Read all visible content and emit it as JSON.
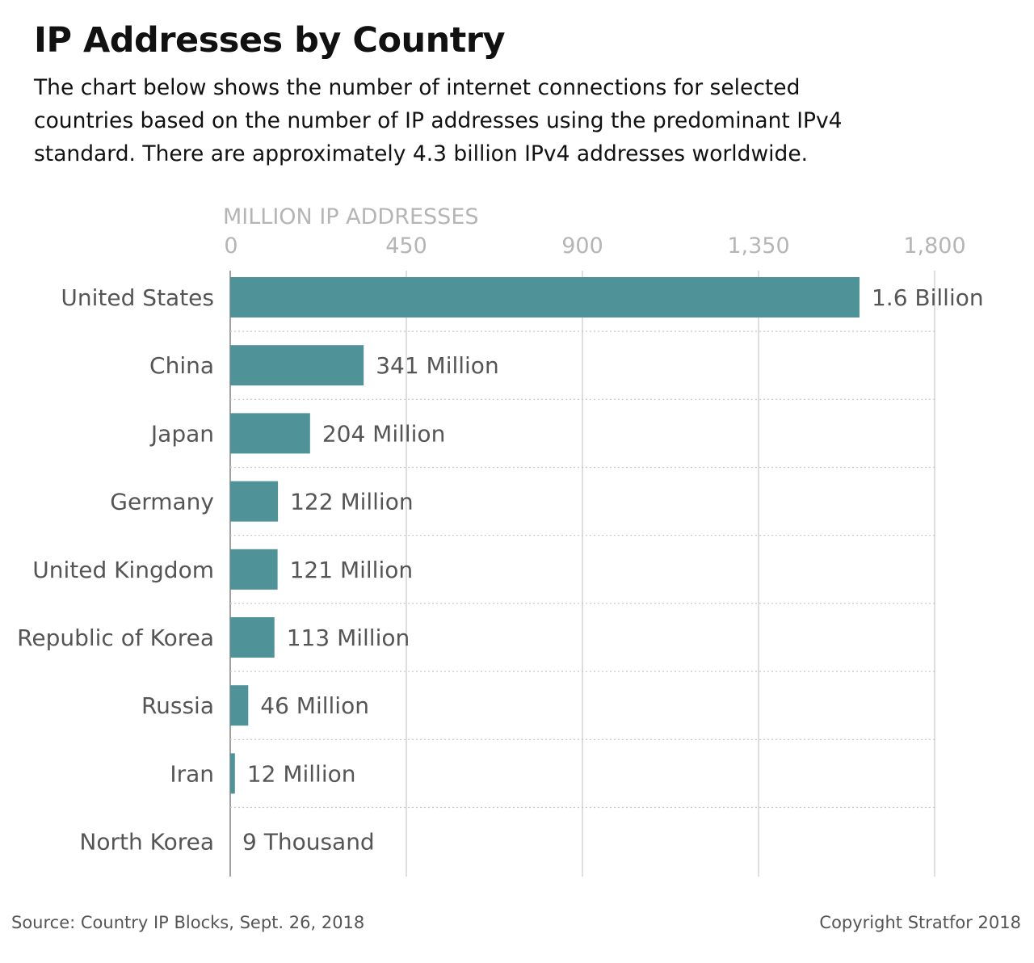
{
  "header": {
    "title": "IP Addresses by Country",
    "subtitle": "The chart below shows the number of internet connections for selected countries based on the number of IP addresses using the predominant IPv4 standard. There are approximately 4.3 billion IPv4 addresses worldwide."
  },
  "footer": {
    "source": "Source: Country IP Blocks, Sept. 26, 2018",
    "copyright": "Copyright Stratfor 2018"
  },
  "colors": {
    "bar": "#4f9399",
    "grid": "#c8c8c8",
    "axis_text": "#b5b5b5",
    "label_text": "#555555"
  },
  "chart_data": {
    "type": "bar",
    "orientation": "horizontal",
    "xlabel": "MILLION IP ADDRESSES",
    "xlim": [
      0,
      1800
    ],
    "xticks": [
      0,
      450,
      900,
      1350,
      1800
    ],
    "xtick_labels": [
      "0",
      "450",
      "900",
      "1,350",
      "1,800"
    ],
    "grid": true,
    "categories": [
      "United States",
      "China",
      "Japan",
      "Germany",
      "United Kingdom",
      "Republic of Korea",
      "Russia",
      "Iran",
      "North Korea"
    ],
    "values": [
      1608,
      341,
      204,
      122,
      121,
      113,
      46,
      12,
      0.009
    ],
    "value_labels": [
      "1.6 Billion",
      "341 Million",
      "204 Million",
      "122 Million",
      "121 Million",
      "113 Million",
      "46 Million",
      "12 Million",
      "9 Thousand"
    ]
  }
}
